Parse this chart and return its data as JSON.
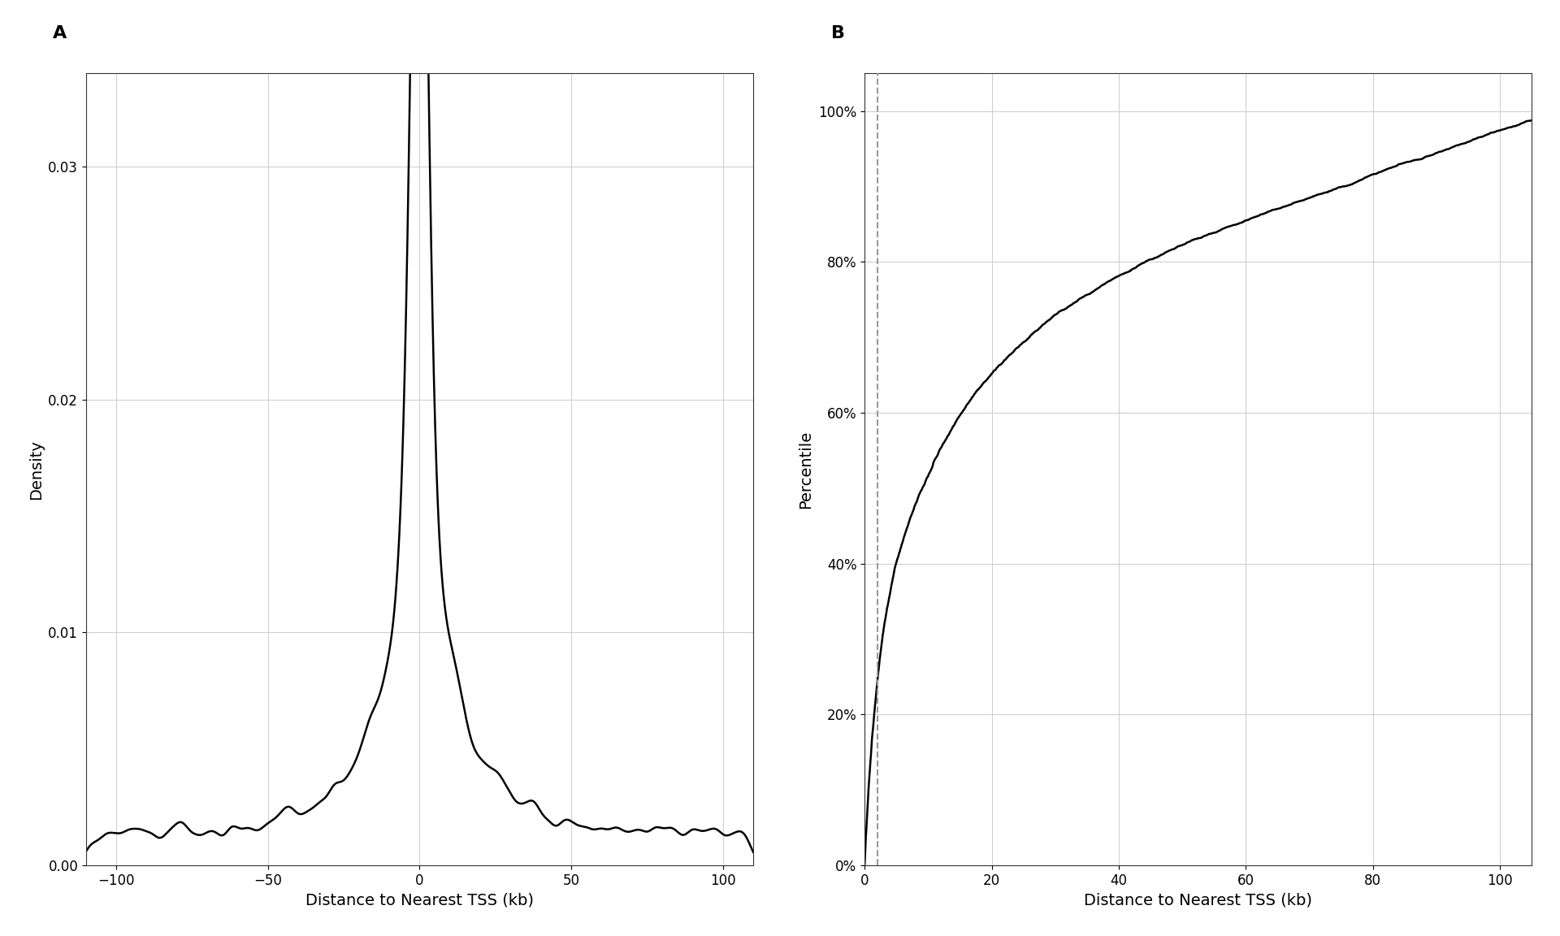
{
  "panel_A": {
    "label": "A",
    "xlabel": "Distance to Nearest TSS (kb)",
    "ylabel": "Density",
    "xlim": [
      -110,
      110
    ],
    "ylim": [
      0,
      0.034
    ],
    "yticks": [
      0.0,
      0.01,
      0.02,
      0.03
    ],
    "xticks": [
      -100,
      -50,
      0,
      50,
      100
    ],
    "line_color": "#000000",
    "grid_color": "#d0d0d0",
    "bg_color": "#ffffff"
  },
  "panel_B": {
    "label": "B",
    "xlabel": "Distance to Nearest TSS (kb)",
    "ylabel": "Percentile",
    "xlim": [
      0,
      105
    ],
    "ylim": [
      0,
      1.05
    ],
    "yticks": [
      0.0,
      0.2,
      0.4,
      0.6,
      0.8,
      1.0
    ],
    "xticks": [
      0,
      20,
      40,
      60,
      80,
      100
    ],
    "dashed_line_x": 2.0,
    "line_color": "#000000",
    "dashed_color": "#999999",
    "grid_color": "#d0d0d0",
    "bg_color": "#ffffff"
  },
  "fig_bg_color": "#ffffff",
  "line_width": 1.8,
  "label_fontsize": 14,
  "tick_fontsize": 12,
  "panel_label_fontsize": 16
}
